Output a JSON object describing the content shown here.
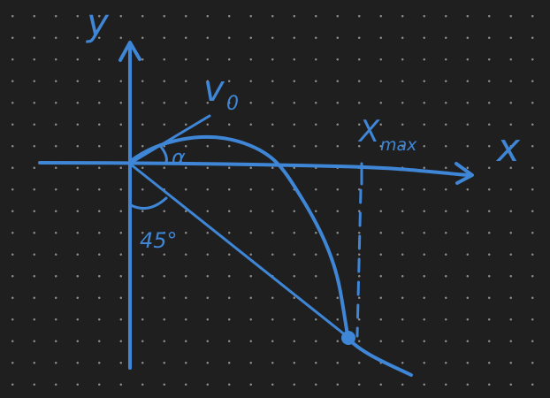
{
  "diagram": {
    "stroke_color": "#3f86d6",
    "background_color": "#1f1f1f",
    "dot_color": "#8a8a8a",
    "labels": {
      "y_axis": "y",
      "x_axis": "x",
      "initial_velocity": "v",
      "initial_velocity_subscript": "0",
      "launch_angle": "α",
      "slope_angle": "45°",
      "x_max_main": "X",
      "x_max_subscript": "max"
    }
  }
}
